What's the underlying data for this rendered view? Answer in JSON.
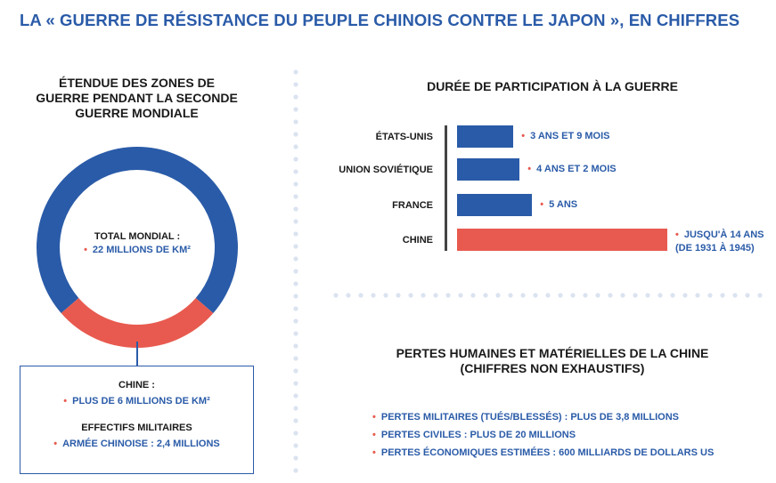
{
  "title": "LA « GUERRE DE RÉSISTANCE DU PEUPLE CHINOIS CONTRE LE JAPON », EN CHIFFRES",
  "colors": {
    "blue": "#2a5ba8",
    "red": "#e85a4f",
    "separator": "#dbe3f0"
  },
  "donut": {
    "title_lines": [
      "ÉTENDUE DES ZONES DE",
      "GUERRE PENDANT LA SECONDE",
      "GUERRE MONDIALE"
    ],
    "center_label": "TOTAL MONDIAL :",
    "center_value": "22 MILLIONS DE KM²",
    "box": {
      "label1": "CHINE :",
      "value1": "PLUS DE 6 MILLIONS DE KM²",
      "label2": "EFFECTIFS MILITAIRES",
      "value2": "ARMÉE CHINOISE : 2,4 MILLIONS"
    }
  },
  "bars": {
    "title": "DURÉE DE PARTICIPATION À LA GUERRE",
    "annot_china_line2": "(DE 1931 À 1945)"
  },
  "losses": {
    "title_lines": [
      "PERTES HUMAINES ET MATÉRIELLES DE LA CHINE",
      "(CHIFFRES NON EXHAUSTIFS)"
    ],
    "items": [
      "PERTES MILITAIRES (TUÉS/BLESSÉS) : PLUS DE 3,8 MILLIONS",
      "PERTES CIVILES : PLUS DE 20 MILLIONS",
      "PERTES ÉCONOMIQUES ESTIMÉES : 600 MILLIARDS DE DOLLARS US"
    ]
  },
  "chart_data": [
    {
      "type": "pie",
      "title": "ÉTENDUE DES ZONES DE GUERRE PENDANT LA SECONDE GUERRE MONDIALE",
      "total": 22,
      "slices": [
        {
          "label": "CHINE",
          "value": 6,
          "color": "#e85a4f"
        },
        {
          "label": "",
          "value": 16,
          "color": "#2a5ba8"
        }
      ]
    },
    {
      "type": "bar",
      "orientation": "horizontal",
      "title": "DURÉE DE PARTICIPATION À LA GUERRE",
      "categories": [
        "ÉTATS-UNIS",
        "UNION SOVIÉTIQUE",
        "FRANCE",
        "CHINE"
      ],
      "values": [
        3.75,
        4.17,
        5,
        14
      ],
      "labels": [
        "3 ANS ET 9 MOIS",
        "4 ANS ET 2 MOIS",
        "5 ANS",
        "JUSQU'À 14 ANS"
      ],
      "colors": [
        "#2a5ba8",
        "#2a5ba8",
        "#2a5ba8",
        "#e85a4f"
      ]
    }
  ]
}
